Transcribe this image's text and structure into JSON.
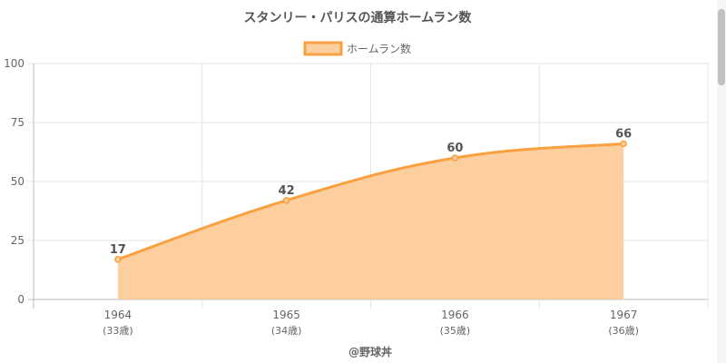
{
  "chart_data": {
    "type": "area",
    "title": "スタンリー・パリスの通算ホームラン数",
    "categories": [
      "1964",
      "1965",
      "1966",
      "1967"
    ],
    "category_sublabels": [
      "(33歳)",
      "(34歳)",
      "(35歳)",
      "(36歳)"
    ],
    "series": [
      {
        "name": "ホームラン数",
        "values": [
          17,
          42,
          60,
          66
        ]
      }
    ],
    "data_labels": [
      "17",
      "42",
      "60",
      "66"
    ],
    "xlabel": "",
    "ylabel": "",
    "ylim": [
      0,
      100
    ],
    "yticks": [
      0,
      25,
      50,
      75,
      100
    ],
    "ytick_labels": [
      "0",
      "25",
      "50",
      "75",
      "100"
    ],
    "grid": true,
    "legend_position": "top-center",
    "credit": "@野球丼",
    "colors": {
      "line": "#f9a040",
      "fill": "#fdcf9e",
      "grid": "#e6e6e6",
      "axis": "#bbbbbb",
      "text": "#666666",
      "label": "#555555"
    }
  }
}
